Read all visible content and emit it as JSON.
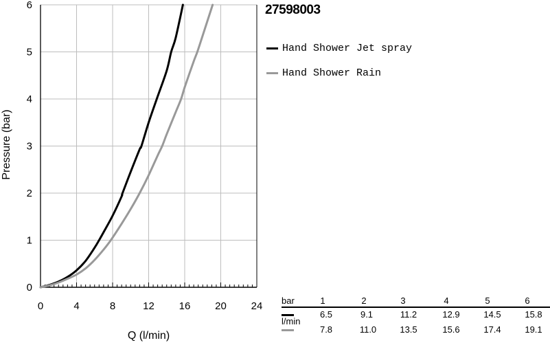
{
  "chart_data": {
    "type": "line",
    "title": "27598003",
    "xlabel": "Q (l/min)",
    "ylabel": "Pressure (bar)",
    "xlim": [
      0,
      24
    ],
    "ylim": [
      0,
      6
    ],
    "xticks": [
      0,
      4,
      8,
      12,
      16,
      20,
      24
    ],
    "yticks": [
      0,
      1,
      2,
      3,
      4,
      5,
      6
    ],
    "grid": true,
    "legend_position": "right",
    "series": [
      {
        "name": "Hand Shower Jet spray",
        "color": "#000000",
        "x": [
          0,
          1,
          2,
          3,
          4,
          5,
          6,
          6.5,
          7,
          8,
          9,
          9.1,
          10,
          11,
          11.2,
          12,
          12.9,
          14,
          14.5,
          15,
          15.8
        ],
        "y": [
          0,
          0.05,
          0.12,
          0.22,
          0.36,
          0.56,
          0.84,
          1,
          1.17,
          1.52,
          1.93,
          2,
          2.45,
          2.93,
          3,
          3.5,
          4,
          4.6,
          5,
          5.3,
          6
        ]
      },
      {
        "name": "Hand Shower Rain",
        "color": "#999999",
        "x": [
          0,
          1,
          2,
          3,
          4,
          5,
          6,
          7,
          7.8,
          9,
          10,
          11,
          12,
          13,
          13.5,
          14,
          15,
          15.6,
          16,
          17,
          17.4,
          18,
          19.1
        ],
        "y": [
          0,
          0.04,
          0.1,
          0.18,
          0.27,
          0.4,
          0.58,
          0.8,
          1,
          1.35,
          1.66,
          2,
          2.38,
          2.8,
          3,
          3.25,
          3.72,
          4,
          4.25,
          4.8,
          5,
          5.35,
          6
        ]
      }
    ]
  },
  "flow_table": {
    "unit_bar": "bar",
    "unit_lmin": "l/min",
    "pressures": [
      "1",
      "2",
      "3",
      "4",
      "5",
      "6"
    ],
    "rows": [
      {
        "color": "#000000",
        "values": [
          "6.5",
          "9.1",
          "11.2",
          "12.9",
          "14.5",
          "15.8"
        ]
      },
      {
        "color": "#999999",
        "values": [
          "7.8",
          "11.0",
          "13.5",
          "15.6",
          "17.4",
          "19.1"
        ]
      }
    ]
  }
}
